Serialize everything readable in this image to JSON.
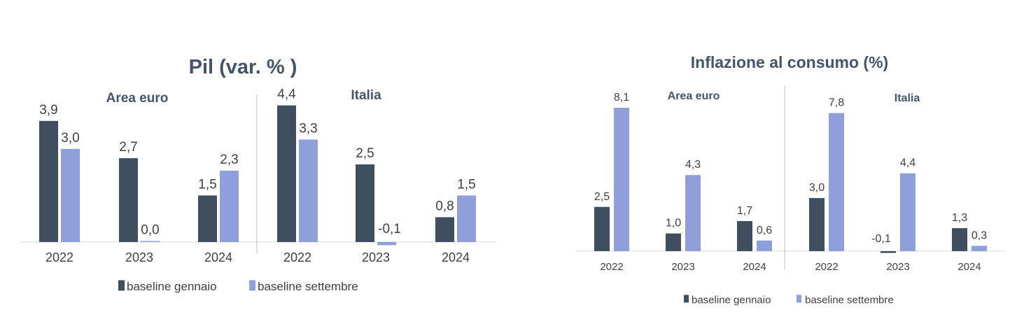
{
  "chart_data": [
    {
      "type": "bar",
      "title": "Pil (var. % )",
      "panels": [
        {
          "label": "Area euro",
          "categories": [
            "2022",
            "2023",
            "2024"
          ],
          "series": [
            {
              "name": "baseline gennaio",
              "values": [
                3.9,
                2.7,
                1.5
              ]
            },
            {
              "name": "baseline settembre",
              "values": [
                3.0,
                0.0,
                2.3
              ]
            }
          ]
        },
        {
          "label": "Italia",
          "categories": [
            "2022",
            "2023",
            "2024"
          ],
          "series": [
            {
              "name": "baseline gennaio",
              "values": [
                4.4,
                2.5,
                0.8
              ]
            },
            {
              "name": "baseline settembre",
              "values": [
                3.3,
                -0.1,
                1.5
              ]
            }
          ]
        }
      ],
      "value_labels": [
        [
          "3,9",
          "2,7",
          "1,5",
          "4,4",
          "2,5",
          "0,8"
        ],
        [
          "3,0",
          "0,0",
          "2,3",
          "3,3",
          "-0,1",
          "1,5"
        ]
      ],
      "legend": [
        "baseline gennaio",
        "baseline settembre"
      ],
      "legend_position": "bottom",
      "colors": [
        "#3f4f5f",
        "#8e9fd9"
      ],
      "grid": false
    },
    {
      "type": "bar",
      "title": "Inflazione al consumo (%)",
      "panels": [
        {
          "label": "Area euro",
          "categories": [
            "2022",
            "2023",
            "2024"
          ],
          "series": [
            {
              "name": "baseline gennaio",
              "values": [
                2.5,
                1.0,
                1.7
              ]
            },
            {
              "name": "baseline settembre",
              "values": [
                8.1,
                4.3,
                0.6
              ]
            }
          ]
        },
        {
          "label": "Italia",
          "categories": [
            "2022",
            "2023",
            "2024"
          ],
          "series": [
            {
              "name": "baseline gennaio",
              "values": [
                3.0,
                -0.1,
                1.3
              ]
            },
            {
              "name": "baseline settembre",
              "values": [
                7.8,
                4.4,
                0.3
              ]
            }
          ]
        }
      ],
      "value_labels": [
        [
          "2,5",
          "1,0",
          "1,7",
          "3,0",
          "-0,1",
          "1,3"
        ],
        [
          "8,1",
          "4,3",
          "0,6",
          "7,8",
          "4,4",
          "0,3"
        ]
      ],
      "legend": [
        "baseline gennaio",
        "baseline settembre"
      ],
      "legend_position": "bottom",
      "colors": [
        "#3f4f5f",
        "#8e9fd9"
      ],
      "grid": false
    }
  ]
}
